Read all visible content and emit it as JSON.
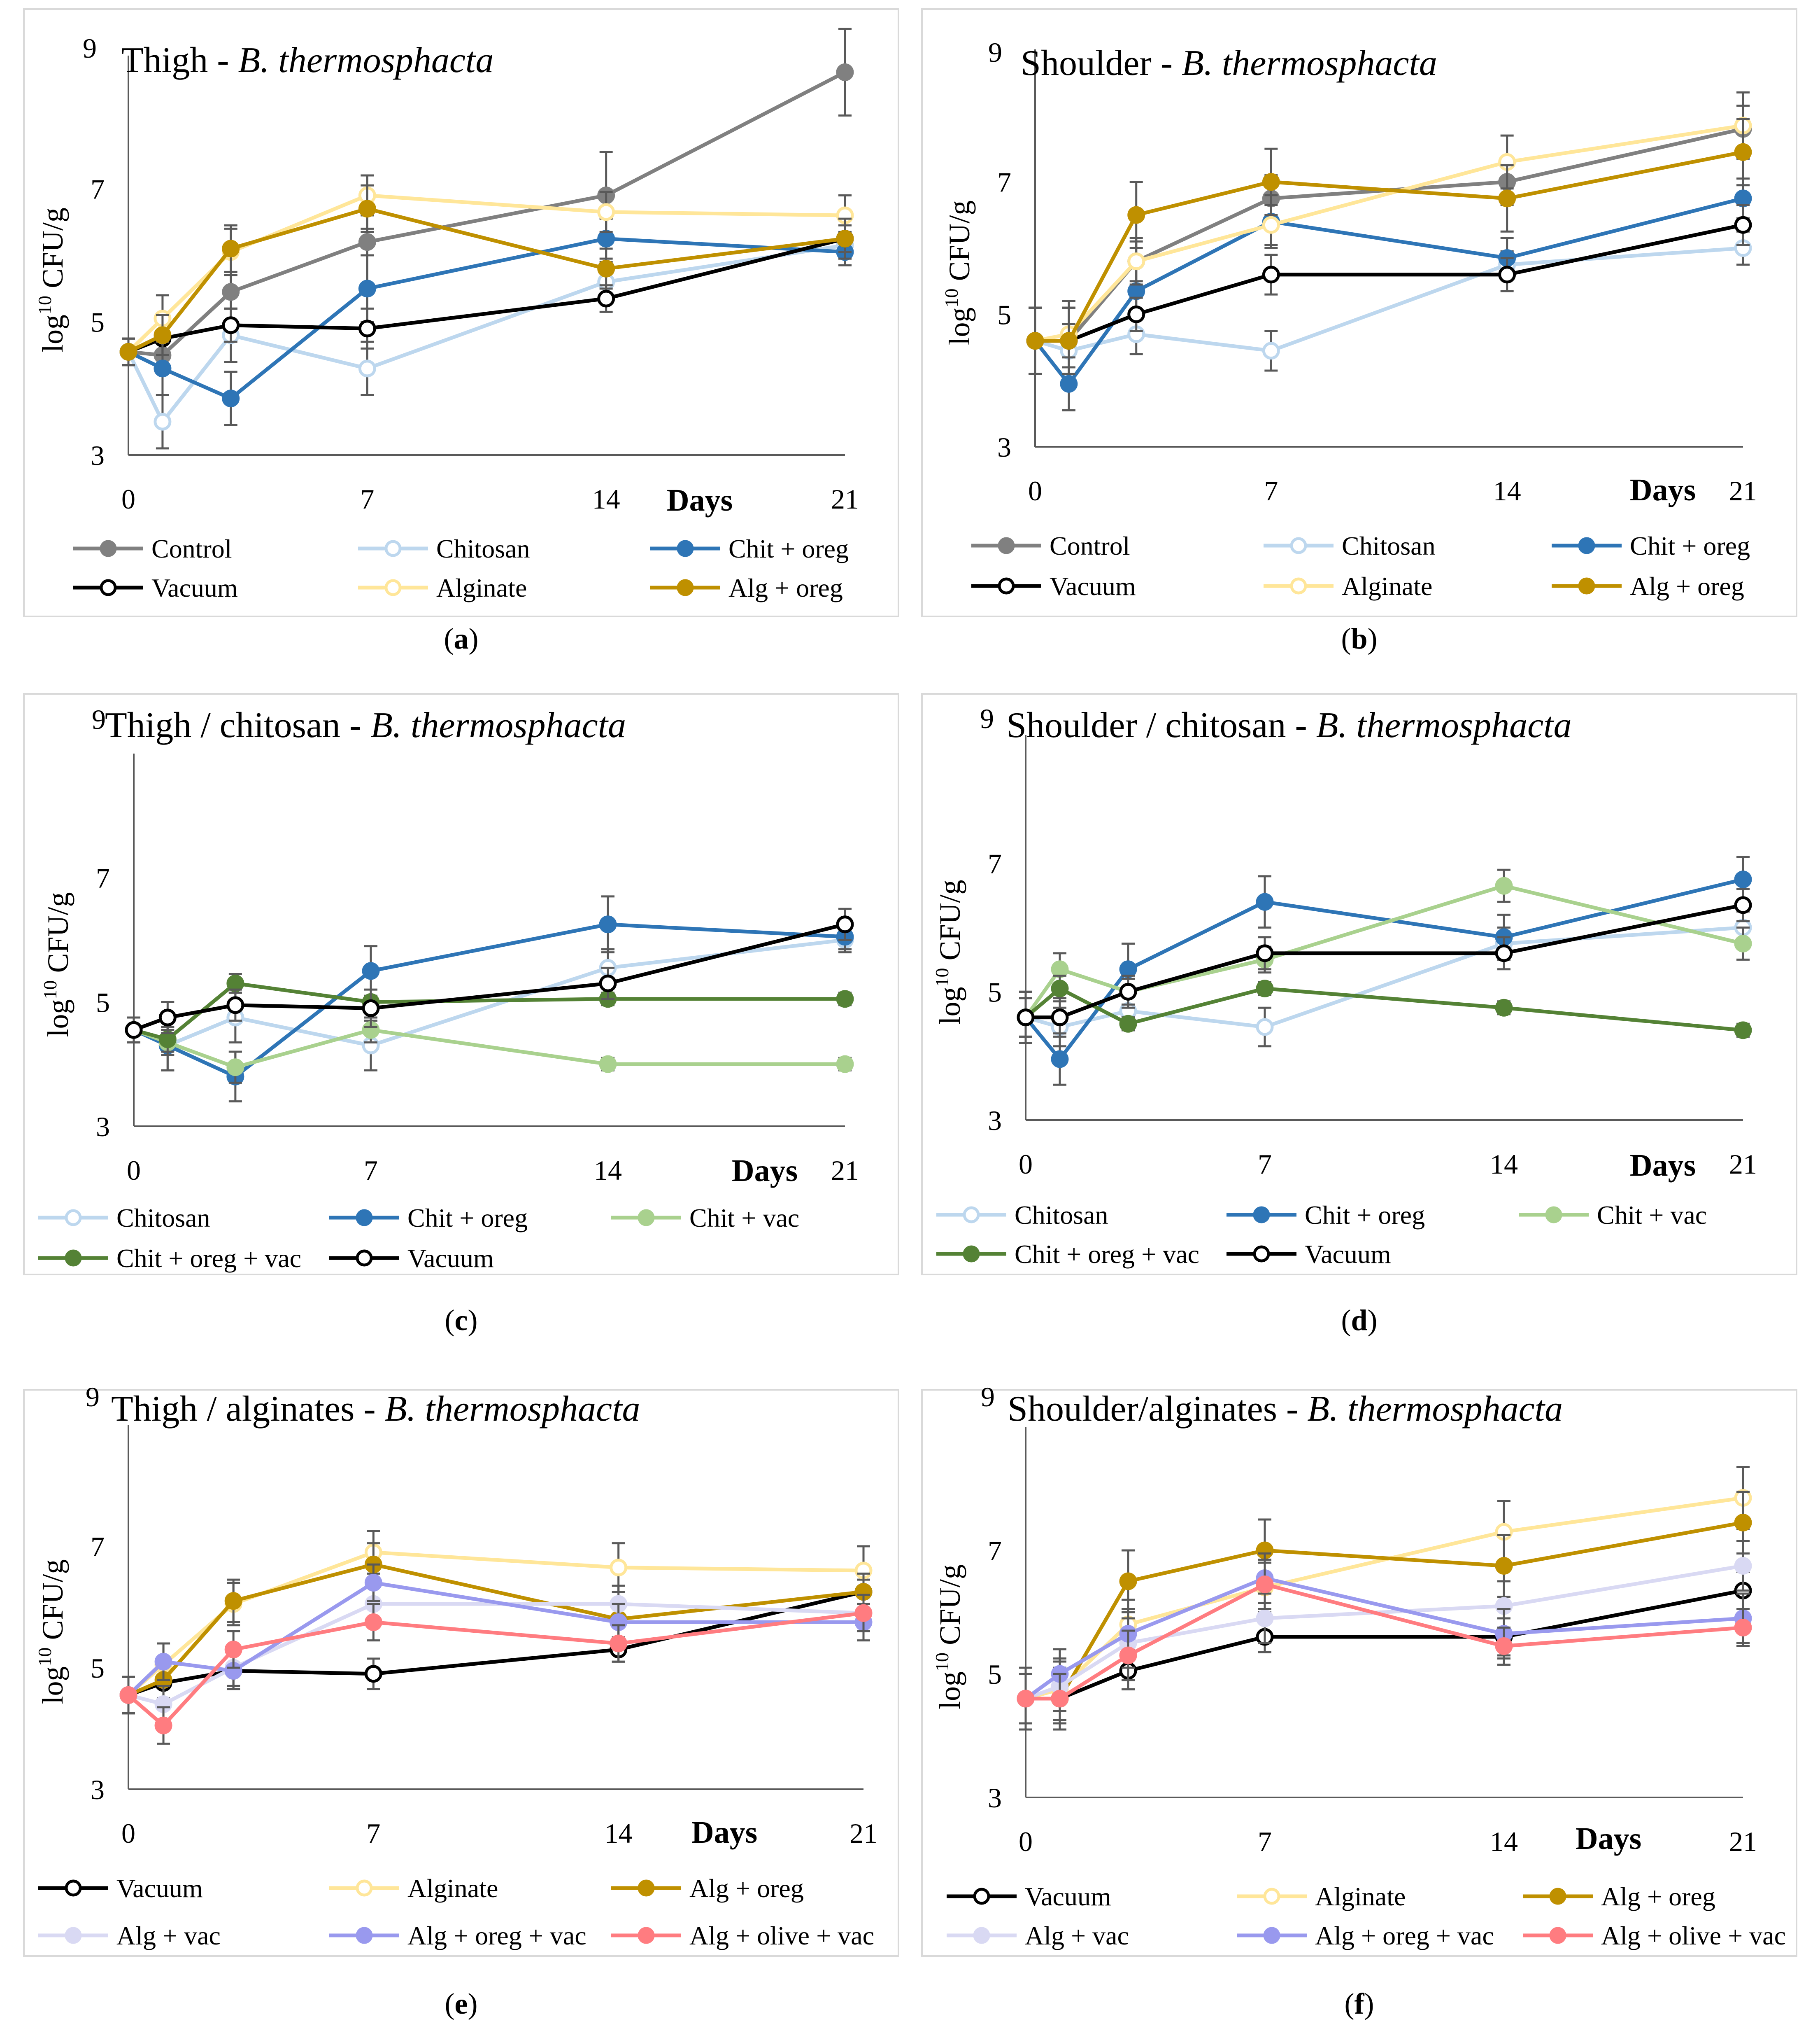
{
  "chart_data": [
    {
      "type": "line",
      "panel": "a",
      "title": "Thigh - ",
      "title_species": "B. thermosphacta",
      "ylabel": "log10 CFU/g",
      "xlabel": "Days",
      "ylim": [
        3,
        9
      ],
      "yticks": [
        "3",
        "5",
        "7",
        "9"
      ],
      "xlim": [
        0,
        21
      ],
      "xticks": [
        "0",
        "7",
        "14",
        "21"
      ],
      "x": [
        0,
        1,
        3,
        7,
        14,
        21
      ],
      "caption": "a",
      "series": [
        {
          "name": "Control",
          "color": "#808080",
          "marker": "filled",
          "values": [
            4.55,
            4.5,
            5.45,
            6.2,
            6.9,
            8.75
          ],
          "errors": [
            0.2,
            0.25,
            0.25,
            0.2,
            0.65,
            0.65
          ]
        },
        {
          "name": "Chitosan",
          "color": "#bdd7ee",
          "marker": "open",
          "values": [
            4.55,
            3.5,
            4.8,
            4.3,
            5.6,
            6.15
          ],
          "errors": [
            0.2,
            0.4,
            0.4,
            0.4,
            0.3,
            0.2
          ]
        },
        {
          "name": "Chit + oreg",
          "color": "#2e75b6",
          "marker": "filled",
          "values": [
            4.55,
            4.3,
            3.85,
            5.5,
            6.25,
            6.05
          ],
          "errors": [
            0.2,
            0.4,
            0.4,
            0.5,
            0.3,
            0.2
          ]
        },
        {
          "name": "Vacuum",
          "color": "#000000",
          "marker": "open",
          "values": [
            4.55,
            4.75,
            4.95,
            4.9,
            5.35,
            6.25
          ],
          "errors": [
            0.2,
            0.25,
            0.25,
            0.3,
            0.2,
            0.2
          ]
        },
        {
          "name": "Alginate",
          "color": "#ffe699",
          "marker": "open",
          "values": [
            4.55,
            5.05,
            6.05,
            6.9,
            6.65,
            6.6
          ],
          "errors": [
            0.2,
            0.35,
            0.35,
            0.3,
            0.3,
            0.3
          ]
        },
        {
          "name": "Alg + oreg",
          "color": "#bf9000",
          "marker": "filled",
          "values": [
            4.55,
            4.8,
            6.1,
            6.7,
            5.8,
            6.25
          ],
          "errors": [
            0.2,
            0.3,
            0.35,
            0.35,
            0.3,
            0.3
          ]
        }
      ]
    },
    {
      "type": "line",
      "panel": "b",
      "title": "Shoulder - ",
      "title_species": "B. thermosphacta",
      "ylabel": "log10 CFU/g",
      "xlabel": "Days",
      "ylim": [
        3,
        9
      ],
      "yticks": [
        "3",
        "5",
        "7",
        "9"
      ],
      "xlim": [
        0,
        21
      ],
      "xticks": [
        "0",
        "7",
        "14",
        "21"
      ],
      "x": [
        0,
        1,
        3,
        7,
        14,
        21
      ],
      "caption": "b",
      "series": [
        {
          "name": "Control",
          "color": "#808080",
          "marker": "filled",
          "values": [
            4.6,
            4.6,
            5.8,
            6.75,
            7.0,
            7.8
          ],
          "errors": [
            0.5,
            0.5,
            0.3,
            0.35,
            0.35,
            0.35
          ]
        },
        {
          "name": "Chitosan",
          "color": "#bdd7ee",
          "marker": "open",
          "values": [
            4.6,
            4.45,
            4.7,
            4.45,
            5.75,
            6.0
          ],
          "errors": [
            0.5,
            0.4,
            0.3,
            0.3,
            0.2,
            0.25
          ]
        },
        {
          "name": "Chit + oreg",
          "color": "#2e75b6",
          "marker": "filled",
          "values": [
            4.6,
            3.95,
            5.35,
            6.4,
            5.85,
            6.75
          ],
          "errors": [
            0.5,
            0.4,
            0.4,
            0.4,
            0.3,
            0.3
          ]
        },
        {
          "name": "Vacuum",
          "color": "#000000",
          "marker": "open",
          "values": [
            4.6,
            4.6,
            5.0,
            5.6,
            5.6,
            6.35
          ],
          "errors": [
            0.5,
            0.5,
            0.25,
            0.3,
            0.25,
            0.3
          ]
        },
        {
          "name": "Alginate",
          "color": "#ffe699",
          "marker": "open",
          "values": [
            4.6,
            4.7,
            5.8,
            6.35,
            7.3,
            7.85
          ],
          "errors": [
            0.5,
            0.5,
            0.35,
            0.3,
            0.4,
            0.5
          ]
        },
        {
          "name": "Alg + oreg",
          "color": "#bf9000",
          "marker": "filled",
          "values": [
            4.6,
            4.6,
            6.5,
            7.0,
            6.75,
            7.45
          ],
          "errors": [
            0.5,
            0.5,
            0.5,
            0.5,
            0.5,
            0.5
          ]
        }
      ]
    },
    {
      "type": "line",
      "panel": "c",
      "title": "Thigh / chitosan - ",
      "title_species": "B. thermosphacta",
      "ylabel": "log10 CFU/g",
      "xlabel": "Days",
      "ylim": [
        3,
        9
      ],
      "yticks": [
        "3",
        "5",
        "7",
        "9"
      ],
      "xlim": [
        0,
        21
      ],
      "xticks": [
        "0",
        "7",
        "14",
        "21"
      ],
      "x": [
        0,
        1,
        3,
        7,
        14,
        21
      ],
      "caption": "c",
      "series": [
        {
          "name": "Chitosan",
          "color": "#bdd7ee",
          "marker": "open",
          "values": [
            4.55,
            4.3,
            4.75,
            4.3,
            5.55,
            6.0
          ],
          "errors": [
            0.2,
            0.4,
            0.4,
            0.4,
            0.3,
            0.2
          ]
        },
        {
          "name": "Chit + oreg",
          "color": "#2e75b6",
          "marker": "filled",
          "values": [
            4.55,
            4.3,
            3.8,
            5.5,
            6.25,
            6.05
          ],
          "errors": [
            0.2,
            0.4,
            0.4,
            0.4,
            0.45,
            0.2
          ]
        },
        {
          "name": "Chit + vac",
          "color": "#a9d18e",
          "marker": "filled",
          "values": [
            4.55,
            4.35,
            3.95,
            4.55,
            4.0,
            4.0
          ],
          "errors": [
            0.2,
            0.2,
            0.25,
            0.2,
            0.1,
            0.1
          ]
        },
        {
          "name": "Chit + oreg + vac",
          "color": "#548235",
          "marker": "filled",
          "values": [
            4.55,
            4.4,
            5.3,
            5.0,
            5.05,
            5.05
          ],
          "errors": [
            0.2,
            0.2,
            0.15,
            0.1,
            0.1,
            0.1
          ]
        },
        {
          "name": "Vacuum",
          "color": "#000000",
          "marker": "open",
          "values": [
            4.55,
            4.75,
            4.95,
            4.9,
            5.3,
            6.25
          ],
          "errors": [
            0.2,
            0.25,
            0.25,
            0.3,
            0.25,
            0.25
          ]
        }
      ]
    },
    {
      "type": "line",
      "panel": "d",
      "title": "Shoulder / chitosan - ",
      "title_species": "B. thermosphacta",
      "ylabel": "log10 CFU/g",
      "xlabel": "Days",
      "ylim": [
        3,
        9
      ],
      "yticks": [
        "3",
        "5",
        "7",
        "9"
      ],
      "xlim": [
        0,
        21
      ],
      "xticks": [
        "0",
        "7",
        "14",
        "21"
      ],
      "x": [
        0,
        1,
        3,
        7,
        14,
        21
      ],
      "caption": "d",
      "series": [
        {
          "name": "Chitosan",
          "color": "#bdd7ee",
          "marker": "open",
          "values": [
            4.6,
            4.45,
            4.7,
            4.45,
            5.75,
            6.0
          ],
          "errors": [
            0.4,
            0.3,
            0.3,
            0.3,
            0.25,
            0.25
          ]
        },
        {
          "name": "Chit + oreg",
          "color": "#2e75b6",
          "marker": "filled",
          "values": [
            4.6,
            3.95,
            5.35,
            6.4,
            5.85,
            6.75
          ],
          "errors": [
            0.4,
            0.4,
            0.4,
            0.4,
            0.35,
            0.35
          ]
        },
        {
          "name": "Chit + vac",
          "color": "#a9d18e",
          "marker": "filled",
          "values": [
            4.6,
            5.35,
            5.0,
            5.5,
            6.65,
            5.75
          ],
          "errors": [
            0.3,
            0.25,
            0.2,
            0.2,
            0.25,
            0.25
          ]
        },
        {
          "name": "Chit + oreg + vac",
          "color": "#548235",
          "marker": "filled",
          "values": [
            4.6,
            5.05,
            4.5,
            5.05,
            4.75,
            4.4
          ],
          "errors": [
            0.3,
            0.2,
            0.1,
            0.1,
            0.1,
            0.1
          ]
        },
        {
          "name": "Vacuum",
          "color": "#000000",
          "marker": "open",
          "values": [
            4.6,
            4.6,
            5.0,
            5.6,
            5.6,
            6.35
          ],
          "errors": [
            0.4,
            0.3,
            0.25,
            0.25,
            0.25,
            0.25
          ]
        }
      ]
    },
    {
      "type": "line",
      "panel": "e",
      "title": "Thigh / alginates - ",
      "title_species": "B. thermosphacta",
      "ylabel": "log10 CFU/g",
      "xlabel": "Days",
      "ylim": [
        3,
        9
      ],
      "yticks": [
        "3",
        "5",
        "7",
        "9"
      ],
      "xlim": [
        0,
        21
      ],
      "xticks": [
        "0",
        "7",
        "14",
        "21"
      ],
      "x": [
        0,
        1,
        3,
        7,
        14,
        21
      ],
      "caption": "e",
      "series": [
        {
          "name": "Vacuum",
          "color": "#000000",
          "marker": "open",
          "values": [
            4.55,
            4.75,
            4.95,
            4.9,
            5.3,
            6.25
          ],
          "errors": [
            0.3,
            0.3,
            0.3,
            0.25,
            0.2,
            0.2
          ]
        },
        {
          "name": "Alginate",
          "color": "#ffe699",
          "marker": "open",
          "values": [
            4.55,
            5.05,
            6.05,
            6.9,
            6.65,
            6.6
          ],
          "errors": [
            0.3,
            0.35,
            0.35,
            0.35,
            0.4,
            0.4
          ]
        },
        {
          "name": "Alg + oreg",
          "color": "#bf9000",
          "marker": "filled",
          "values": [
            4.55,
            4.8,
            6.1,
            6.7,
            5.8,
            6.25
          ],
          "errors": [
            0.3,
            0.3,
            0.35,
            0.35,
            0.3,
            0.3
          ]
        },
        {
          "name": "Alg + vac",
          "color": "#d9d9f3",
          "marker": "filled",
          "values": [
            4.55,
            4.4,
            5.0,
            6.05,
            6.05,
            5.9
          ],
          "errors": [
            0.3,
            0.3,
            0.3,
            0.3,
            0.3,
            0.3
          ]
        },
        {
          "name": "Alg + oreg + vac",
          "color": "#9999ee",
          "marker": "filled",
          "values": [
            4.55,
            5.1,
            4.95,
            6.4,
            5.75,
            5.75
          ],
          "errors": [
            0.3,
            0.3,
            0.3,
            0.3,
            0.3,
            0.3
          ]
        },
        {
          "name": "Alg + olive + vac",
          "color": "#ff7c80",
          "marker": "filled",
          "values": [
            4.55,
            4.05,
            5.3,
            5.75,
            5.4,
            5.9
          ],
          "errors": [
            0.3,
            0.3,
            0.3,
            0.3,
            0.3,
            0.3
          ]
        }
      ]
    },
    {
      "type": "line",
      "panel": "f",
      "title": "Shoulder/alginates - ",
      "title_species": "B. thermosphacta",
      "ylabel": "log10 CFU/g",
      "xlabel": "Days",
      "ylim": [
        3,
        9
      ],
      "yticks": [
        "3",
        "5",
        "7",
        "9"
      ],
      "xlim": [
        0,
        21
      ],
      "xticks": [
        "0",
        "7",
        "14",
        "21"
      ],
      "x": [
        0,
        1,
        3,
        7,
        14,
        21
      ],
      "caption": "f",
      "series": [
        {
          "name": "Vacuum",
          "color": "#000000",
          "marker": "open",
          "values": [
            4.6,
            4.6,
            5.05,
            5.6,
            5.6,
            6.35
          ],
          "errors": [
            0.5,
            0.5,
            0.3,
            0.25,
            0.3,
            0.3
          ]
        },
        {
          "name": "Alginate",
          "color": "#ffe699",
          "marker": "open",
          "values": [
            4.6,
            4.75,
            5.8,
            6.4,
            7.3,
            7.85
          ],
          "errors": [
            0.5,
            0.5,
            0.4,
            0.4,
            0.5,
            0.5
          ]
        },
        {
          "name": "Alg + oreg",
          "color": "#bf9000",
          "marker": "filled",
          "values": [
            4.6,
            4.6,
            6.5,
            7.0,
            6.75,
            7.45
          ],
          "errors": [
            0.5,
            0.5,
            0.5,
            0.5,
            0.5,
            0.5
          ]
        },
        {
          "name": "Alg + vac",
          "color": "#d9d9f3",
          "marker": "filled",
          "values": [
            4.6,
            4.8,
            5.5,
            5.9,
            6.1,
            6.75
          ],
          "errors": [
            0.4,
            0.4,
            0.4,
            0.4,
            0.4,
            0.4
          ]
        },
        {
          "name": "Alg + oreg + vac",
          "color": "#9999ee",
          "marker": "filled",
          "values": [
            4.6,
            5.0,
            5.65,
            6.55,
            5.65,
            5.9
          ],
          "errors": [
            0.4,
            0.4,
            0.4,
            0.4,
            0.4,
            0.4
          ]
        },
        {
          "name": "Alg + olive + vac",
          "color": "#ff7c80",
          "marker": "filled",
          "values": [
            4.6,
            4.6,
            5.3,
            6.45,
            5.45,
            5.75
          ],
          "errors": [
            0.4,
            0.4,
            0.4,
            0.4,
            0.3,
            0.3
          ]
        }
      ]
    }
  ]
}
